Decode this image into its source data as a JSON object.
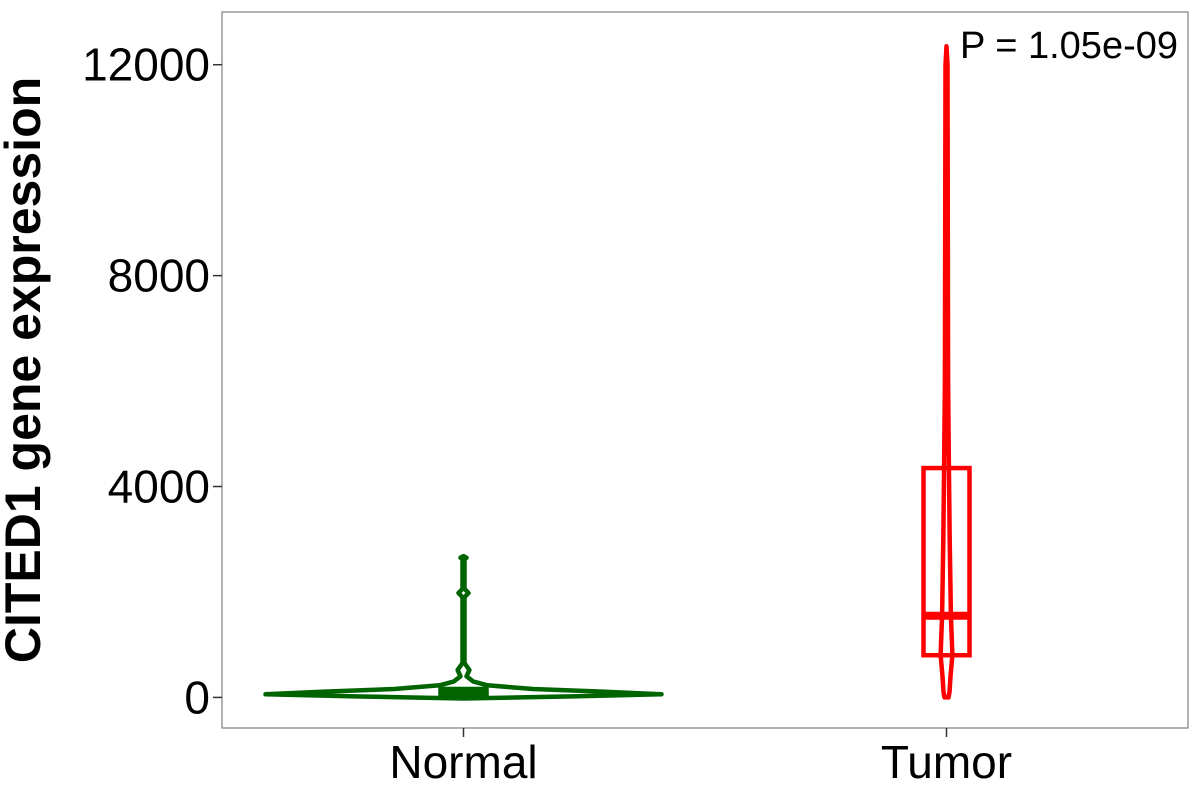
{
  "chart_data": {
    "type": "violin",
    "ylabel": "CITED1 gene expression",
    "xlabel": "",
    "ylim": [
      -580,
      13000
    ],
    "yticks": [
      0,
      4000,
      8000,
      12000
    ],
    "yticks_labels": [
      "0",
      "4000",
      "8000",
      "12000"
    ],
    "categories": [
      "Normal",
      "Tumor"
    ],
    "grid": false,
    "annotation": "P = 1.05e-09",
    "series": [
      {
        "name": "Normal",
        "color": "#006400",
        "box": {
          "q1": 20,
          "median": 60,
          "q3": 160
        },
        "violin": [
          {
            "y": -20,
            "w": 0.0
          },
          {
            "y": 20,
            "w": 0.55
          },
          {
            "y": 60,
            "w": 1.0
          },
          {
            "y": 110,
            "w": 0.7
          },
          {
            "y": 160,
            "w": 0.35
          },
          {
            "y": 230,
            "w": 0.12
          },
          {
            "y": 300,
            "w": 0.05
          },
          {
            "y": 400,
            "w": 0.015
          },
          {
            "y": 520,
            "w": 0.03
          },
          {
            "y": 650,
            "w": 0.005
          },
          {
            "y": 1900,
            "w": 0.005
          },
          {
            "y": 1980,
            "w": 0.025
          },
          {
            "y": 2060,
            "w": 0.005
          },
          {
            "y": 2620,
            "w": 0.005
          },
          {
            "y": 2650,
            "w": 0.015
          },
          {
            "y": 2680,
            "w": 0.0
          }
        ]
      },
      {
        "name": "Tumor",
        "color": "#ff0000",
        "box": {
          "q1": 800,
          "median": 1550,
          "q3": 4350
        },
        "violin": [
          {
            "y": 0,
            "w": 0.01
          },
          {
            "y": 100,
            "w": 0.015
          },
          {
            "y": 400,
            "w": 0.02
          },
          {
            "y": 800,
            "w": 0.03
          },
          {
            "y": 1550,
            "w": 0.022
          },
          {
            "y": 3000,
            "w": 0.016
          },
          {
            "y": 4350,
            "w": 0.012
          },
          {
            "y": 6000,
            "w": 0.008
          },
          {
            "y": 8000,
            "w": 0.007
          },
          {
            "y": 10000,
            "w": 0.006
          },
          {
            "y": 12000,
            "w": 0.005
          },
          {
            "y": 12350,
            "w": 0.0
          }
        ]
      }
    ]
  }
}
